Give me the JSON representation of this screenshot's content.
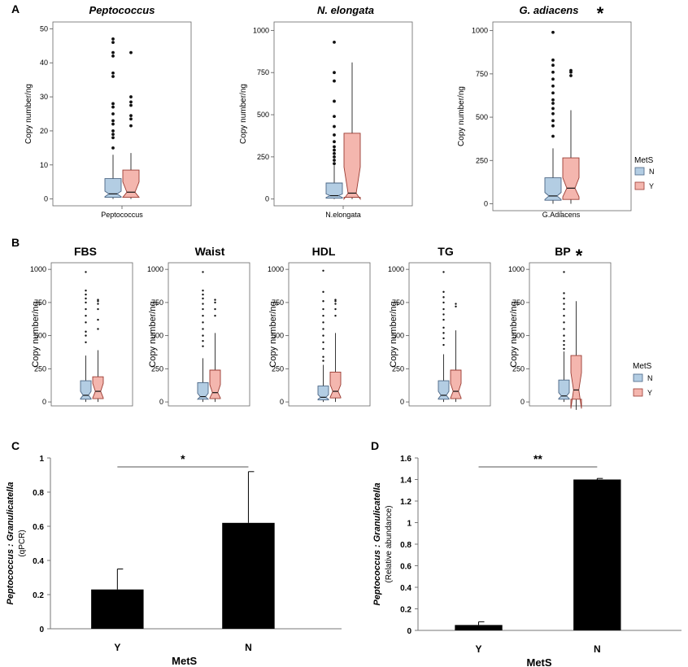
{
  "panels": {
    "A": "A",
    "B": "B",
    "C": "C",
    "D": "D"
  },
  "colors": {
    "N": "#b3cde3",
    "Y": "#f4b6ae",
    "N_stroke": "#4a6584",
    "Y_stroke": "#9a3b32",
    "bar": "#000000"
  },
  "legend": {
    "title": "MetS",
    "items": [
      "N",
      "Y"
    ]
  },
  "chart_data": [
    {
      "id": "A1",
      "type": "box",
      "title": "Peptococcus",
      "significant": false,
      "ylabel": "Copy number/ng",
      "xlabel": "Peptococcus",
      "ylim": [
        -2,
        52
      ],
      "yticks": [
        0,
        10,
        20,
        30,
        40,
        50
      ],
      "groups": [
        {
          "name": "N",
          "q1": 0.5,
          "median": 1.5,
          "q3": 6,
          "lower_whisker": 0,
          "upper_whisker": 13,
          "notch": [
            0.7,
            2.3
          ],
          "outliers": [
            15,
            18,
            19,
            20,
            22,
            23,
            25,
            27,
            28,
            36,
            37,
            42,
            43,
            46,
            47
          ]
        },
        {
          "name": "Y",
          "q1": 0.5,
          "median": 2,
          "q3": 8.5,
          "lower_whisker": 0,
          "upper_whisker": 13.5,
          "notch": [
            0.5,
            5
          ],
          "outliers": [
            21.5,
            23.5,
            24.5,
            27.5,
            28.5,
            30,
            43
          ]
        }
      ]
    },
    {
      "id": "A2",
      "type": "box",
      "title": "N. elongata",
      "significant": false,
      "ylabel": "Copy number/ng",
      "xlabel": "N.elongata",
      "ylim": [
        -40,
        1050
      ],
      "yticks": [
        0,
        250,
        500,
        750,
        1000
      ],
      "groups": [
        {
          "name": "N",
          "q1": 5,
          "median": 20,
          "q3": 95,
          "lower_whisker": 0,
          "upper_whisker": 200,
          "notch": [
            10,
            30
          ],
          "outliers": [
            210,
            230,
            250,
            270,
            290,
            310,
            340,
            380,
            430,
            490,
            580,
            700,
            750,
            930
          ]
        },
        {
          "name": "Y",
          "q1": 10,
          "median": 35,
          "q3": 390,
          "lower_whisker": 0,
          "upper_whisker": 810,
          "notch": [
            0,
            190
          ],
          "outliers": []
        }
      ]
    },
    {
      "id": "A3",
      "type": "box",
      "title": "G. adiacens",
      "significant": true,
      "sig_label": "*",
      "ylabel": "Copy number/ng",
      "xlabel": "G.Adiacens",
      "ylim": [
        -40,
        1050
      ],
      "yticks": [
        0,
        250,
        500,
        750,
        1000
      ],
      "groups": [
        {
          "name": "N",
          "q1": 20,
          "median": 45,
          "q3": 150,
          "lower_whisker": 0,
          "upper_whisker": 320,
          "notch": [
            25,
            65
          ],
          "outliers": [
            390,
            450,
            480,
            520,
            550,
            580,
            600,
            640,
            680,
            720,
            760,
            800,
            830,
            990
          ]
        },
        {
          "name": "Y",
          "q1": 25,
          "median": 90,
          "q3": 265,
          "lower_whisker": 0,
          "upper_whisker": 540,
          "notch": [
            40,
            150
          ],
          "outliers": [
            740,
            760,
            770
          ]
        }
      ]
    },
    {
      "id": "B1",
      "type": "box",
      "title": "FBS",
      "significant": false,
      "ylabel": "Copy number/ng",
      "ylim": [
        -30,
        1050
      ],
      "yticks": [
        0,
        250,
        500,
        750,
        1000
      ],
      "groups": [
        {
          "name": "N",
          "q1": 20,
          "median": 50,
          "q3": 160,
          "lower_whisker": 0,
          "upper_whisker": 350,
          "notch": [
            25,
            80
          ],
          "outliers": [
            450,
            500,
            530,
            600,
            650,
            700,
            750,
            780,
            810,
            840,
            980
          ]
        },
        {
          "name": "Y",
          "q1": 25,
          "median": 80,
          "q3": 190,
          "lower_whisker": 0,
          "upper_whisker": 390,
          "notch": [
            30,
            140
          ],
          "outliers": [
            550,
            620,
            700,
            740,
            760,
            770
          ]
        }
      ]
    },
    {
      "id": "B2",
      "type": "box",
      "title": "Waist",
      "significant": false,
      "ylabel": "Copy number/ng",
      "ylim": [
        -30,
        1050
      ],
      "yticks": [
        0,
        250,
        500,
        750,
        1000
      ],
      "groups": [
        {
          "name": "N",
          "q1": 20,
          "median": 40,
          "q3": 145,
          "lower_whisker": 0,
          "upper_whisker": 330,
          "notch": [
            20,
            65
          ],
          "outliers": [
            420,
            460,
            500,
            550,
            600,
            650,
            700,
            740,
            780,
            810,
            840,
            980
          ]
        },
        {
          "name": "Y",
          "q1": 25,
          "median": 70,
          "q3": 240,
          "lower_whisker": 0,
          "upper_whisker": 520,
          "notch": [
            30,
            130
          ],
          "outliers": [
            650,
            700,
            750,
            770
          ]
        }
      ]
    },
    {
      "id": "B3",
      "type": "box",
      "title": "HDL",
      "significant": false,
      "ylabel": "Copy number/ng",
      "ylim": [
        -30,
        1050
      ],
      "yticks": [
        0,
        250,
        500,
        750,
        1000
      ],
      "groups": [
        {
          "name": "N",
          "q1": 15,
          "median": 35,
          "q3": 120,
          "lower_whisker": 0,
          "upper_whisker": 280,
          "notch": [
            20,
            55
          ],
          "outliers": [
            310,
            340,
            400,
            450,
            500,
            550,
            600,
            650,
            700,
            760,
            830,
            990
          ]
        },
        {
          "name": "Y",
          "q1": 30,
          "median": 80,
          "q3": 225,
          "lower_whisker": 0,
          "upper_whisker": 520,
          "notch": [
            35,
            130
          ],
          "outliers": [
            650,
            700,
            740,
            760,
            770
          ]
        }
      ]
    },
    {
      "id": "B4",
      "type": "box",
      "title": "TG",
      "significant": false,
      "ylabel": "Copy number/ng",
      "ylim": [
        -30,
        1050
      ],
      "yticks": [
        0,
        250,
        500,
        750,
        1000
      ],
      "groups": [
        {
          "name": "N",
          "q1": 20,
          "median": 50,
          "q3": 160,
          "lower_whisker": 0,
          "upper_whisker": 360,
          "notch": [
            25,
            80
          ],
          "outliers": [
            430,
            480,
            520,
            560,
            620,
            660,
            700,
            750,
            790,
            830,
            980
          ]
        },
        {
          "name": "Y",
          "q1": 25,
          "median": 80,
          "q3": 240,
          "lower_whisker": 0,
          "upper_whisker": 540,
          "notch": [
            30,
            140
          ],
          "outliers": [
            720,
            740
          ]
        }
      ]
    },
    {
      "id": "B5",
      "type": "box",
      "title": "BP",
      "significant": true,
      "sig_label": "*",
      "ylabel": "Copy number/ng",
      "ylim": [
        -30,
        1050
      ],
      "yticks": [
        0,
        250,
        500,
        750,
        1000
      ],
      "groups": [
        {
          "name": "N",
          "q1": 20,
          "median": 45,
          "q3": 165,
          "lower_whisker": 0,
          "upper_whisker": 380,
          "notch": [
            25,
            70
          ],
          "outliers": [
            400,
            430,
            460,
            500,
            550,
            600,
            650,
            700,
            740,
            780,
            820,
            980
          ]
        },
        {
          "name": "Y",
          "q1": 20,
          "median": 90,
          "q3": 350,
          "lower_whisker": -60,
          "upper_whisker": 760,
          "notch": [
            -50,
            220
          ],
          "outliers": []
        }
      ]
    },
    {
      "id": "C",
      "type": "bar",
      "ylabel_italic": "Peptococcus : Granulicatella",
      "ylabel_plain": "(qPCR)",
      "xlabel": "MetS",
      "categories": [
        "Y",
        "N"
      ],
      "values": [
        0.23,
        0.62
      ],
      "errors": [
        0.12,
        0.3
      ],
      "ylim": [
        0,
        1
      ],
      "yticks": [
        "0",
        "0.2",
        "0.4",
        "0.6",
        "0.8",
        "1"
      ],
      "significance": "*"
    },
    {
      "id": "D",
      "type": "bar",
      "ylabel_italic": "Peptococcus : Granulicatella",
      "ylabel_plain": "(Relative abundance)",
      "xlabel": "MetS",
      "categories": [
        "Y",
        "N"
      ],
      "values": [
        0.05,
        1.4
      ],
      "errors": [
        0.03,
        0.01
      ],
      "ylim": [
        0,
        1.6
      ],
      "yticks": [
        "0",
        "0.2",
        "0.4",
        "0.6",
        "0.8",
        "1",
        "1.2",
        "1.4",
        "1.6"
      ],
      "significance": "**"
    }
  ]
}
